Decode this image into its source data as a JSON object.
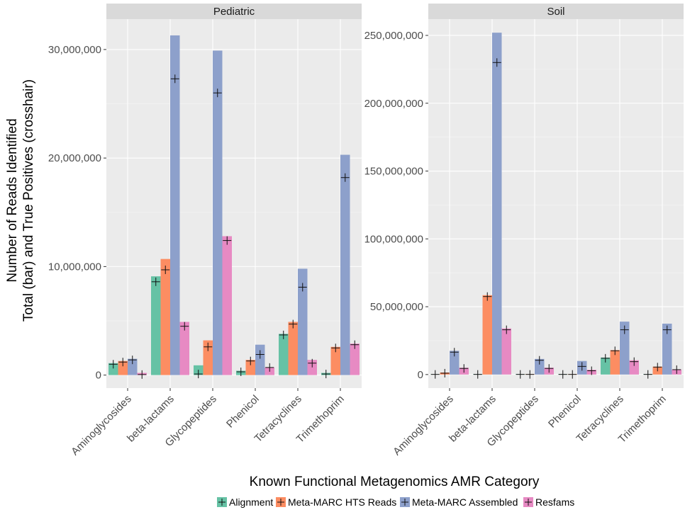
{
  "chart_data": {
    "type": "bar",
    "ylabel_line1": "Number of Reads Identified",
    "ylabel_line2": "Total (bar) and True Positives (crosshair)",
    "xlabel": "Known Functional Metagenomics AMR Category",
    "categories": [
      "Aminoglycosides",
      "beta-lactams",
      "Glycopeptides",
      "Phenicol",
      "Tetracyclines",
      "Trimethoprim"
    ],
    "series_names": [
      "Alignment",
      "Meta-MARC HTS Reads",
      "Meta-MARC Assembled",
      "Resfams"
    ],
    "colors": [
      "#66c2a5",
      "#fc8d62",
      "#8da0cb",
      "#e78ac3"
    ],
    "grid": true,
    "legend_position": "bottom",
    "panels": [
      {
        "title": "Pediatric",
        "ylim": [
          -1200000,
          32800000
        ],
        "yticks": [
          0,
          10000000,
          20000000,
          30000000
        ],
        "ytick_labels": [
          "0",
          "10,000,000",
          "20,000,000",
          "30,000,000"
        ],
        "series": [
          {
            "name": "Alignment",
            "values": [
              1100000,
              9100000,
              900000,
              400000,
              3800000,
              200000
            ],
            "true_positives": [
              1000000,
              8600000,
              100000,
              300000,
              3700000,
              100000
            ]
          },
          {
            "name": "Meta-MARC HTS Reads",
            "values": [
              1300000,
              10700000,
              3200000,
              1400000,
              4900000,
              2600000
            ],
            "true_positives": [
              1200000,
              9700000,
              2600000,
              1300000,
              4700000,
              2500000
            ]
          },
          {
            "name": "Meta-MARC Assembled",
            "values": [
              1500000,
              31300000,
              29900000,
              2800000,
              9800000,
              20300000
            ],
            "true_positives": [
              1400000,
              27300000,
              26000000,
              1900000,
              8100000,
              18200000
            ]
          },
          {
            "name": "Resfams",
            "values": [
              200000,
              4900000,
              12800000,
              700000,
              1400000,
              2900000
            ],
            "true_positives": [
              50000,
              4500000,
              12400000,
              700000,
              1100000,
              2800000
            ]
          }
        ]
      },
      {
        "title": "Soil",
        "ylim": [
          -10000000,
          262000000
        ],
        "yticks": [
          0,
          50000000,
          100000000,
          150000000,
          200000000,
          250000000
        ],
        "ytick_labels": [
          "0",
          "50,000,000",
          "100,000,000",
          "150,000,000",
          "200,000,000",
          "250,000,000"
        ],
        "series": [
          {
            "name": "Alignment",
            "values": [
              200000,
              300000,
              300000,
              300000,
              12500000,
              300000
            ],
            "true_positives": [
              100000,
              100000,
              100000,
              100000,
              12000000,
              100000
            ]
          },
          {
            "name": "Meta-MARC HTS Reads",
            "values": [
              1500000,
              58500000,
              300000,
              300000,
              18000000,
              5800000
            ],
            "true_positives": [
              1000000,
              57500000,
              100000,
              100000,
              17500000,
              5500000
            ]
          },
          {
            "name": "Meta-MARC Assembled",
            "values": [
              17500000,
              252000000,
              11500000,
              10000000,
              39000000,
              37500000
            ],
            "true_positives": [
              16500000,
              230000000,
              10500000,
              6000000,
              33000000,
              33000000
            ]
          },
          {
            "name": "Resfams",
            "values": [
              5000000,
              34000000,
              5000000,
              3500000,
              10500000,
              3700000
            ],
            "true_positives": [
              4500000,
              33000000,
              4500000,
              2800000,
              9500000,
              3600000
            ]
          }
        ]
      }
    ]
  }
}
